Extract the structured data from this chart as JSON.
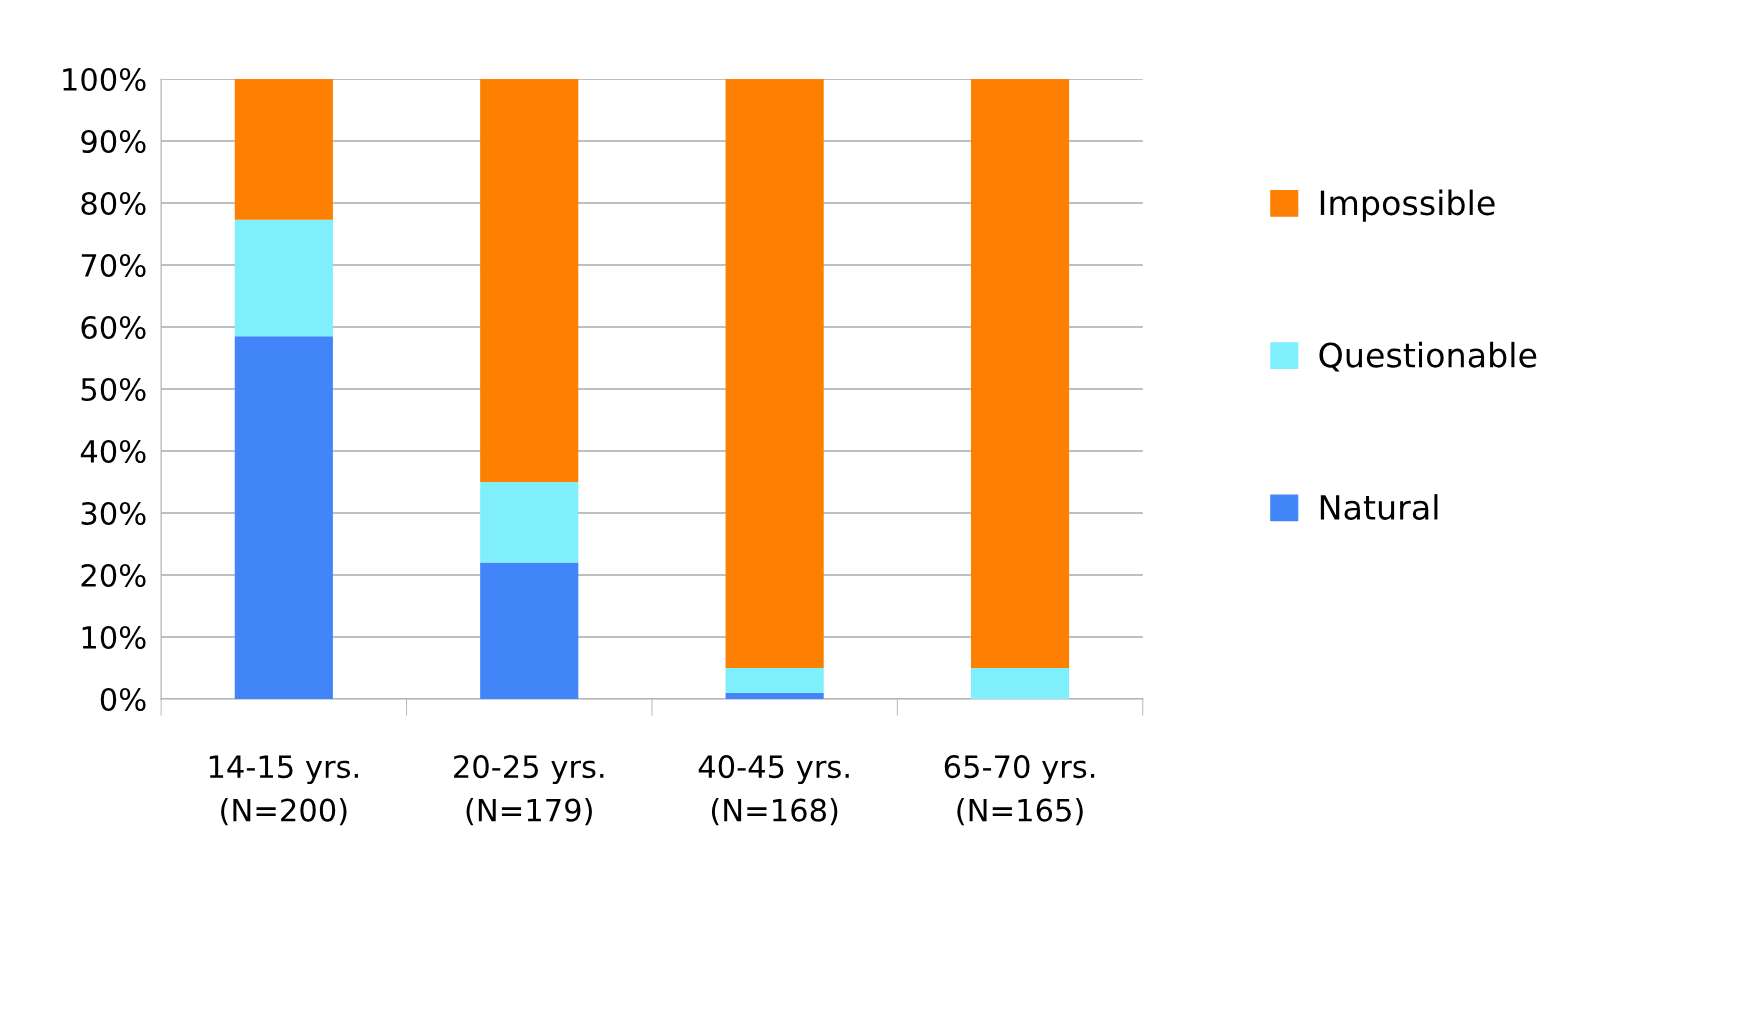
{
  "chart_data": {
    "type": "bar",
    "stacked": true,
    "categories": [
      "14-15 yrs.\n(N=200)",
      "20-25 yrs.\n(N=179)",
      "40-45 yrs.\n(N=168)",
      "65-70 yrs.\n(N=165)"
    ],
    "series": [
      {
        "name": "Natural",
        "color": "#4285f9",
        "values": [
          58.5,
          22,
          1,
          0
        ]
      },
      {
        "name": "Questionable",
        "color": "#7ff0fb",
        "values": [
          18.8,
          13,
          4,
          5
        ]
      },
      {
        "name": "Impossible",
        "color": "#fd8002",
        "values": [
          22.7,
          65,
          95,
          95
        ]
      }
    ],
    "ylim": [
      0,
      100
    ],
    "yticks": [
      {
        "value": 0,
        "label": "0%"
      },
      {
        "value": 10,
        "label": "10%"
      },
      {
        "value": 20,
        "label": "20%"
      },
      {
        "value": 30,
        "label": "30%"
      },
      {
        "value": 40,
        "label": "40%"
      },
      {
        "value": 50,
        "label": "50%"
      },
      {
        "value": 60,
        "label": "60%"
      },
      {
        "value": 70,
        "label": "70%"
      },
      {
        "value": 80,
        "label": "80%"
      },
      {
        "value": 90,
        "label": "90%"
      },
      {
        "value": 100,
        "label": "100%"
      }
    ],
    "grid": "y",
    "legend": "right"
  }
}
